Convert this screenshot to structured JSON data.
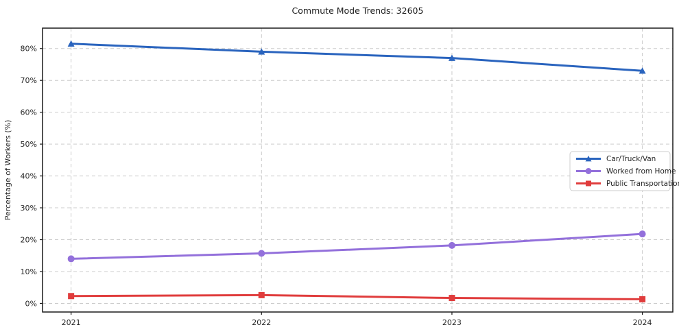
{
  "chart_data": {
    "type": "line",
    "title": "Commute Mode Trends: 32605",
    "xlabel": "",
    "ylabel": "Percentage of Workers (%)",
    "x": [
      2021,
      2022,
      2023,
      2024
    ],
    "x_tick_labels": [
      "2021",
      "2022",
      "2023",
      "2024"
    ],
    "y_ticks": [
      0,
      10,
      20,
      30,
      40,
      50,
      60,
      70,
      80
    ],
    "y_tick_labels": [
      "0%",
      "10%",
      "20%",
      "30%",
      "40%",
      "50%",
      "60%",
      "70%",
      "80%"
    ],
    "xlim": [
      2020.85,
      2024.16
    ],
    "ylim": [
      -2.7,
      86.4
    ],
    "grid": "dashed-both-axes",
    "grid_color": "#cccccc",
    "axis_color": "#1a1a1a",
    "legend_position": "middle-right",
    "series": [
      {
        "name": "Car/Truck/Van",
        "color": "#2a64be",
        "marker": "triangle",
        "values": [
          81.5,
          79.0,
          77.0,
          73.0
        ]
      },
      {
        "name": "Worked from Home",
        "color": "#9370db",
        "marker": "circle",
        "values": [
          14.0,
          15.7,
          18.2,
          21.8
        ]
      },
      {
        "name": "Public Transportation",
        "color": "#e03c3c",
        "marker": "square",
        "values": [
          2.3,
          2.6,
          1.7,
          1.3
        ]
      }
    ]
  }
}
